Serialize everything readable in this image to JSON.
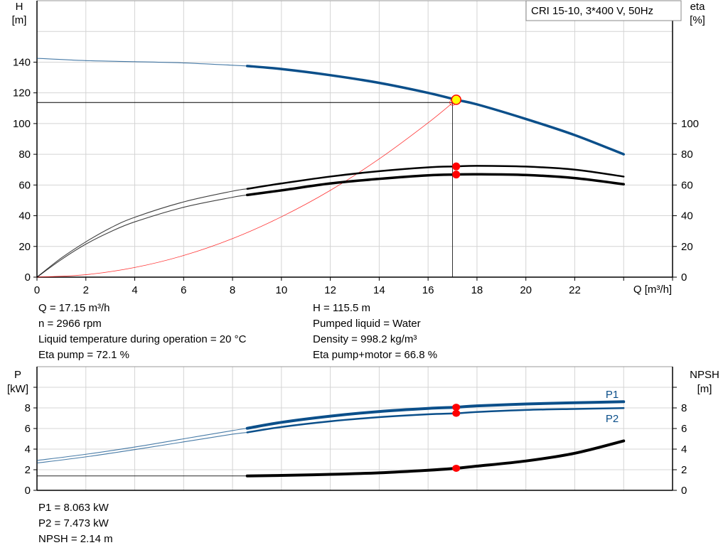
{
  "chart_data": [
    {
      "type": "line",
      "title": "CRI 15-10, 3*400 V, 50Hz",
      "xlabel": "Q [m³/h]",
      "ylabel_left": [
        "H",
        "[m]"
      ],
      "ylabel_right": [
        "eta",
        "[%]"
      ],
      "xlim": [
        0,
        26
      ],
      "ylim": [
        0,
        180
      ],
      "x_ticks": [
        0,
        2,
        4,
        6,
        8,
        10,
        12,
        14,
        16,
        18,
        20,
        22
      ],
      "y_ticks_left": [
        0,
        20,
        40,
        60,
        80,
        100,
        120,
        140
      ],
      "y_ticks_right": [
        0,
        20,
        40,
        60,
        80,
        100
      ],
      "grid": true,
      "series": [
        {
          "id": "H",
          "color": "#0b4f8a",
          "x": [
            0,
            2,
            4,
            6,
            8,
            8.6,
            10,
            12,
            14,
            16,
            17.15,
            18,
            20,
            22,
            24
          ],
          "values": [
            142.5,
            141,
            140.3,
            139.5,
            138,
            137.5,
            135.5,
            131.5,
            126.5,
            120,
            115.5,
            112.5,
            103,
            92.5,
            80
          ]
        },
        {
          "id": "eta_pump",
          "color": "#000000",
          "x": [
            0,
            1,
            2,
            3,
            4,
            6,
            8,
            8.6,
            10,
            12,
            14,
            16,
            17.15,
            18,
            20,
            22,
            24
          ],
          "values": [
            0,
            12.5,
            23,
            32,
            39,
            49,
            56,
            57.5,
            61,
            65.5,
            69,
            71.5,
            72.1,
            72.5,
            72,
            70,
            65.5
          ]
        },
        {
          "id": "eta_pump_motor",
          "color": "#000000",
          "x": [
            0,
            1,
            2,
            3,
            4,
            6,
            8,
            8.6,
            10,
            12,
            14,
            16,
            17.15,
            18,
            20,
            22,
            24
          ],
          "values": [
            0,
            11.5,
            21.5,
            29.5,
            36,
            45.5,
            52,
            53.5,
            56.5,
            61,
            64,
            66.3,
            66.8,
            67,
            66.5,
            64.5,
            60.5
          ]
        },
        {
          "id": "system_curve",
          "color": "#ff0000",
          "x": [
            0,
            2,
            4,
            6,
            8,
            10,
            12,
            14,
            16,
            17.15
          ],
          "values": [
            0,
            1.6,
            6.3,
            14.1,
            25.1,
            39.3,
            56.5,
            77,
            100.5,
            115.5
          ]
        }
      ],
      "duty_point": {
        "Q": 17.15,
        "H": 115.5,
        "eta_pump": 72.1,
        "eta_pump_motor": 66.8
      },
      "requested_point": {
        "Q": 17.0,
        "H": 113.7
      }
    },
    {
      "type": "line",
      "xlim": [
        0,
        26
      ],
      "ylim": [
        0,
        12
      ],
      "ylabel_left": [
        "P",
        "[kW]"
      ],
      "ylabel_right": [
        "NPSH",
        "[m]"
      ],
      "y_ticks_left": [
        0,
        2,
        4,
        6,
        8,
        10
      ],
      "y_tick_labels": [
        "0",
        "2",
        "4",
        "6",
        "8",
        ""
      ],
      "grid": true,
      "series": [
        {
          "id": "P1",
          "name": "P1",
          "color": "#0b4f8a",
          "x": [
            0,
            2,
            4,
            6,
            8,
            8.6,
            10,
            12,
            14,
            16,
            17.15,
            18,
            20,
            22,
            24
          ],
          "values": [
            2.9,
            3.5,
            4.2,
            5.0,
            5.8,
            6.02,
            6.6,
            7.2,
            7.65,
            7.95,
            8.063,
            8.2,
            8.38,
            8.5,
            8.6
          ]
        },
        {
          "id": "P2",
          "name": "P2",
          "color": "#0b4f8a",
          "x": [
            0,
            2,
            4,
            6,
            8,
            8.6,
            10,
            12,
            14,
            16,
            17.15,
            18,
            20,
            22,
            24
          ],
          "values": [
            2.65,
            3.25,
            3.95,
            4.7,
            5.45,
            5.62,
            6.15,
            6.7,
            7.1,
            7.38,
            7.473,
            7.6,
            7.8,
            7.9,
            7.98
          ]
        },
        {
          "id": "NPSH",
          "color": "#000000",
          "x": [
            0,
            2,
            4,
            6,
            8,
            8.6,
            10,
            12,
            14,
            16,
            17.15,
            18,
            20,
            22,
            24
          ],
          "values": [
            1.4,
            1.4,
            1.4,
            1.4,
            1.4,
            1.4,
            1.45,
            1.55,
            1.7,
            1.95,
            2.14,
            2.35,
            2.85,
            3.6,
            4.8
          ]
        }
      ],
      "duty_point": {
        "Q": 17.15,
        "P1": 8.063,
        "P2": 7.473,
        "NPSH": 2.14
      }
    }
  ],
  "info_top": {
    "left": [
      "Q = 17.15 m³/h",
      "n = 2966 rpm",
      "Liquid temperature during operation = 20 °C",
      "Eta pump = 72.1 %"
    ],
    "right": [
      "H = 115.5 m",
      "Pumped liquid = Water",
      "Density = 998.2 kg/m³",
      "Eta pump+motor = 66.8 %"
    ]
  },
  "info_bottom": [
    "P1 = 8.063 kW",
    "P2 = 7.473 kW",
    "NPSH = 2.14 m"
  ],
  "colors": {
    "head": "#0b4f8a",
    "marker": "#ff0000",
    "duty_fill": "#ffff00",
    "grid": "#d4d4d4"
  },
  "thick_from_Q": 8.6
}
